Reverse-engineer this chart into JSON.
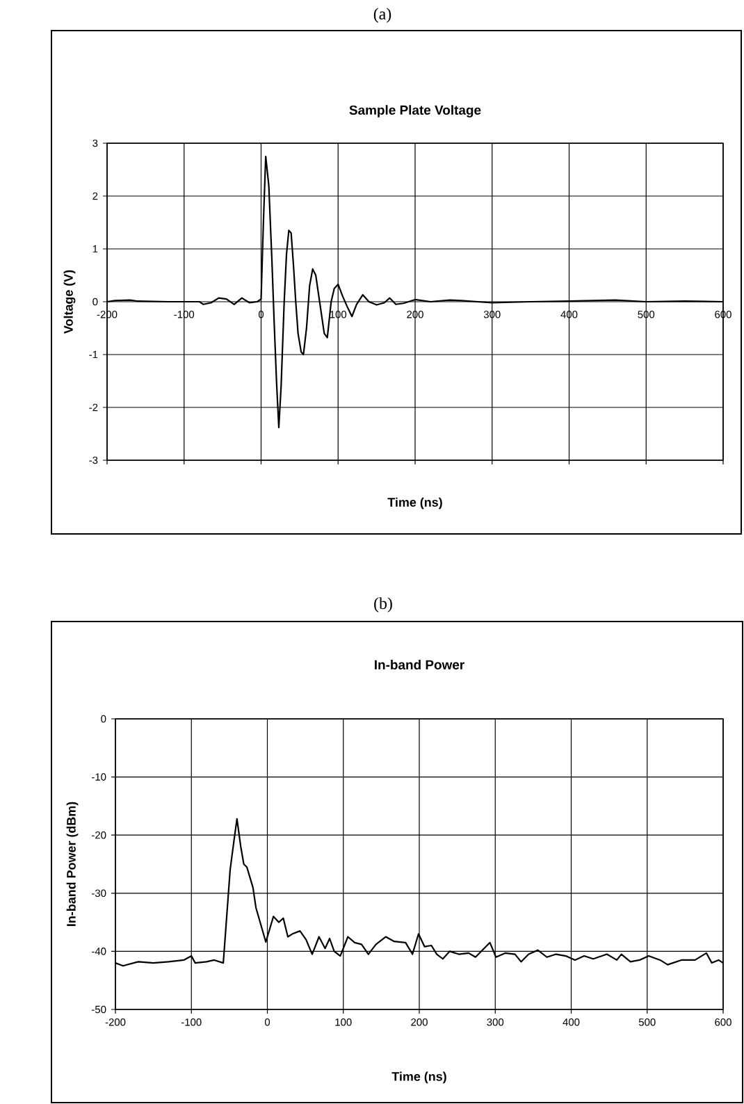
{
  "chart_data": [
    {
      "type": "line",
      "title": "Sample Plate Voltage",
      "xlabel": "Time (ns)",
      "ylabel": "Voltage (V)",
      "annotations": [
        "(a)"
      ],
      "color": "#000000",
      "grid": true,
      "xlim": [
        -200,
        600
      ],
      "ylim": [
        -3,
        3
      ],
      "xticks": [
        -200,
        -100,
        0,
        100,
        200,
        300,
        400,
        500,
        600
      ],
      "yticks": [
        -3,
        -2,
        -1,
        0,
        1,
        2,
        3
      ],
      "x": [
        -200,
        -190,
        -170,
        -160,
        -120,
        -80,
        -75,
        -65,
        -55,
        -45,
        -35,
        -25,
        -15,
        -5,
        0,
        3,
        6,
        10,
        14,
        17,
        20,
        23,
        26,
        30,
        33,
        36,
        39,
        42,
        45,
        48,
        52,
        55,
        59,
        63,
        67,
        71,
        76,
        82,
        86,
        91,
        95,
        100,
        106,
        112,
        118,
        124,
        132,
        140,
        150,
        160,
        167,
        175,
        185,
        200,
        220,
        245,
        260,
        300,
        350,
        400,
        460,
        500,
        550,
        600
      ],
      "values": [
        0,
        0.02,
        0.03,
        0.01,
        0,
        0,
        -0.05,
        -0.02,
        0.07,
        0.05,
        -0.05,
        0.07,
        -0.02,
        0,
        0.05,
        1.5,
        2.75,
        2.2,
        0.8,
        -0.4,
        -1.5,
        -2.38,
        -1.6,
        0,
        0.9,
        1.35,
        1.3,
        0.7,
        0,
        -0.6,
        -0.95,
        -1.0,
        -0.5,
        0.3,
        0.62,
        0.5,
        0,
        -0.6,
        -0.68,
        0,
        0.25,
        0.33,
        0.1,
        -0.1,
        -0.28,
        -0.05,
        0.13,
        0,
        -0.06,
        -0.02,
        0.07,
        -0.05,
        -0.03,
        0.04,
        0,
        0.03,
        0.02,
        -0.02,
        0,
        0.01,
        0.03,
        0,
        0.01,
        0
      ]
    },
    {
      "type": "line",
      "title": "In-band Power",
      "xlabel": "Time (ns)",
      "ylabel": "In-band Power (dBm)",
      "annotations": [
        "(b)"
      ],
      "color": "#000000",
      "grid": true,
      "xlim": [
        -200,
        600
      ],
      "ylim": [
        -50,
        0
      ],
      "xticks": [
        -200,
        -100,
        0,
        100,
        200,
        300,
        400,
        500,
        600
      ],
      "yticks": [
        -50,
        -40,
        -30,
        -20,
        -10,
        0
      ],
      "x": [
        -200,
        -190,
        -170,
        -150,
        -130,
        -110,
        -100,
        -95,
        -80,
        -70,
        -58,
        -49,
        -44,
        -40,
        -35,
        -31,
        -27,
        -19,
        -15,
        -2,
        8,
        15,
        21,
        27,
        33,
        43,
        51,
        59,
        68,
        76,
        82,
        88,
        96,
        106,
        115,
        124,
        133,
        143,
        156,
        167,
        182,
        191,
        199,
        207,
        216,
        223,
        231,
        240,
        252,
        265,
        274,
        293,
        301,
        313,
        326,
        334,
        344,
        356,
        368,
        380,
        393,
        405,
        417,
        429,
        447,
        460,
        466,
        478,
        490,
        502,
        517,
        527,
        545,
        563,
        578,
        585,
        594,
        600
      ],
      "values": [
        -42,
        -42.5,
        -41.8,
        -42,
        -41.8,
        -41.5,
        -40.8,
        -42,
        -41.8,
        -41.5,
        -42,
        -26,
        -21,
        -17.2,
        -22,
        -25,
        -25.5,
        -29,
        -32.5,
        -38.4,
        -34,
        -35,
        -34.3,
        -37.5,
        -37,
        -36.5,
        -38,
        -40.5,
        -37.5,
        -39.5,
        -37.8,
        -40,
        -40.8,
        -37.5,
        -38.5,
        -38.8,
        -40.5,
        -38.8,
        -37.5,
        -38.3,
        -38.5,
        -40.5,
        -37,
        -39.2,
        -39,
        -40.5,
        -41.3,
        -40,
        -40.5,
        -40.3,
        -41,
        -38.5,
        -41,
        -40.3,
        -40.5,
        -41.8,
        -40.5,
        -39.8,
        -41,
        -40.5,
        -40.8,
        -41.5,
        -40.8,
        -41.3,
        -40.5,
        -41.5,
        -40.5,
        -41.8,
        -41.5,
        -40.8,
        -41.5,
        -42.3,
        -41.5,
        -41.5,
        -40.3,
        -42,
        -41.5,
        -42
      ]
    }
  ]
}
